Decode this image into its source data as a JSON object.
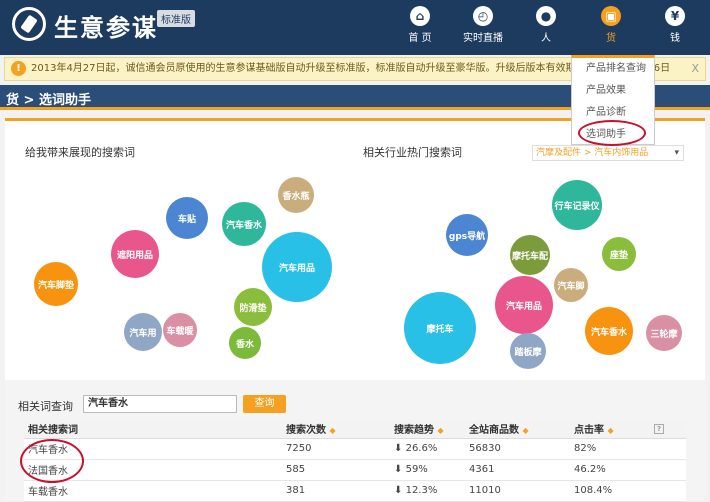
{
  "header": {
    "brand": "生意参谋",
    "edition": "标准版",
    "nav": [
      {
        "label": "首 页",
        "icon": "home-icon",
        "glyph": "⌂"
      },
      {
        "label": "实时直播",
        "icon": "clock-icon",
        "glyph": "◴"
      },
      {
        "label": "人",
        "icon": "user-icon",
        "glyph": "●"
      },
      {
        "label": "货",
        "icon": "goods-icon",
        "glyph": "▣"
      },
      {
        "label": "钱",
        "icon": "yen-icon",
        "glyph": "¥"
      }
    ]
  },
  "dropdown": {
    "items": [
      "产品排名查询",
      "产品效果",
      "产品诊断",
      "选词助手"
    ]
  },
  "notice": {
    "text": "2013年4月27日起，诚信通会员原使用的生意参谋基础版自动升级至标准版，标准版自动升级至豪华版。升级后版本有效期截至2014年4月26日",
    "close": "X"
  },
  "section": {
    "title": "货 > 选词助手"
  },
  "left_panel": {
    "title": "给我带来展现的搜索词",
    "bubbles": [
      "汽车脚垫",
      "遮阳用品",
      "车贴",
      "汽车香水",
      "香水瓶",
      "汽车用品",
      "防滑垫",
      "香水",
      "汽车用",
      "车载暖"
    ]
  },
  "right_panel": {
    "title": "相关行业热门搜索词",
    "industry": "汽摩及配件 > 汽车内饰用品",
    "bubbles": [
      "gps导航",
      "行车记录仪",
      "摩托车配",
      "座垫",
      "摩托车",
      "汽车用品",
      "汽车脚",
      "汽车香水",
      "踏板摩",
      "三轮摩"
    ]
  },
  "query": {
    "label": "相关词查询",
    "value": "汽车香水",
    "button": "查询"
  },
  "table": {
    "headers": [
      "相关搜索词",
      "搜索次数",
      "搜索趋势",
      "全站商品数",
      "点击率"
    ],
    "rows": [
      [
        "汽车香水",
        "7250",
        "26.6%",
        "56830",
        "82%"
      ],
      [
        "法国香水",
        "585",
        "59%",
        "4361",
        "46.2%"
      ],
      [
        "车载香水",
        "381",
        "12.3%",
        "11010",
        "108.4%"
      ]
    ]
  },
  "colors": {
    "header_bg": "#1d3a5f",
    "accent": "#f4a020",
    "highlight_circle": "#c8102e"
  }
}
